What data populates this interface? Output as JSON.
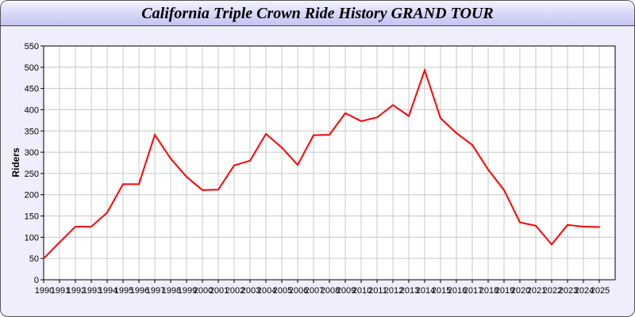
{
  "chart_data": {
    "type": "line",
    "title": "California Triple Crown Ride History GRAND TOUR",
    "xlabel": "",
    "ylabel": "Riders",
    "ylim": [
      0,
      550
    ],
    "yticks": [
      0,
      50,
      100,
      150,
      200,
      250,
      300,
      350,
      400,
      450,
      500,
      550
    ],
    "grid": true,
    "line_color": "#ff0000",
    "x": [
      1990,
      1991,
      1992,
      1993,
      1994,
      1995,
      1996,
      1997,
      1998,
      1999,
      2000,
      2001,
      2002,
      2003,
      2004,
      2005,
      2006,
      2007,
      2008,
      2009,
      2010,
      2011,
      2012,
      2013,
      2014,
      2015,
      2016,
      2017,
      2018,
      2019,
      2020,
      2021,
      2022,
      2023,
      2024,
      2025
    ],
    "series": [
      {
        "values": [
          50,
          88,
          125,
          125,
          158,
          225,
          225,
          341,
          285,
          242,
          211,
          212,
          269,
          280,
          343,
          311,
          270,
          340,
          341,
          392,
          373,
          382,
          411,
          385,
          493,
          380,
          345,
          317,
          259,
          211,
          135,
          127,
          83,
          129,
          125,
          124
        ]
      }
    ]
  }
}
